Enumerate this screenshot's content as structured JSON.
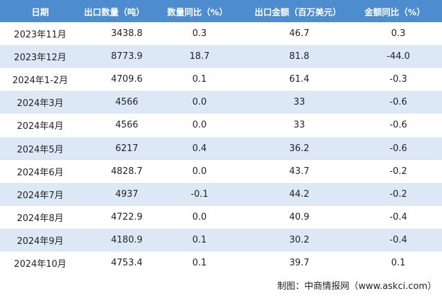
{
  "table": {
    "header": [
      "日期",
      "出口数量（吨）",
      "数量同比（%）",
      "出口金额（百万美元）",
      "金额同比（%）"
    ],
    "rows": [
      [
        "2023年11月",
        "3438.8",
        "0.3",
        "46.7",
        "0.3"
      ],
      [
        "2023年12月",
        "8773.9",
        "18.7",
        "81.8",
        "-44.0"
      ],
      [
        "2024年1-2月",
        "4709.6",
        "0.1",
        "61.4",
        "-0.3"
      ],
      [
        "2024年3月",
        "4566",
        "0.0",
        "33",
        "-0.6"
      ],
      [
        "2024年4月",
        "4566",
        "0.0",
        "33",
        "-0.6"
      ],
      [
        "2024年5月",
        "6217",
        "0.4",
        "36.2",
        "-0.6"
      ],
      [
        "2024年6月",
        "4828.7",
        "0.0",
        "43.7",
        "-0.2"
      ],
      [
        "2024年7月",
        "4937",
        "-0.1",
        "44.2",
        "-0.2"
      ],
      [
        "2024年8月",
        "4722.9",
        "0.0",
        "40.9",
        "-0.4"
      ],
      [
        "2024年9月",
        "4180.9",
        "0.1",
        "30.2",
        "-0.4"
      ],
      [
        "2024年10月",
        "4753.4",
        "0.1",
        "39.7",
        "0.1"
      ]
    ]
  },
  "footer": {
    "source": "制图：中商情报网（www.askci.com）"
  }
}
